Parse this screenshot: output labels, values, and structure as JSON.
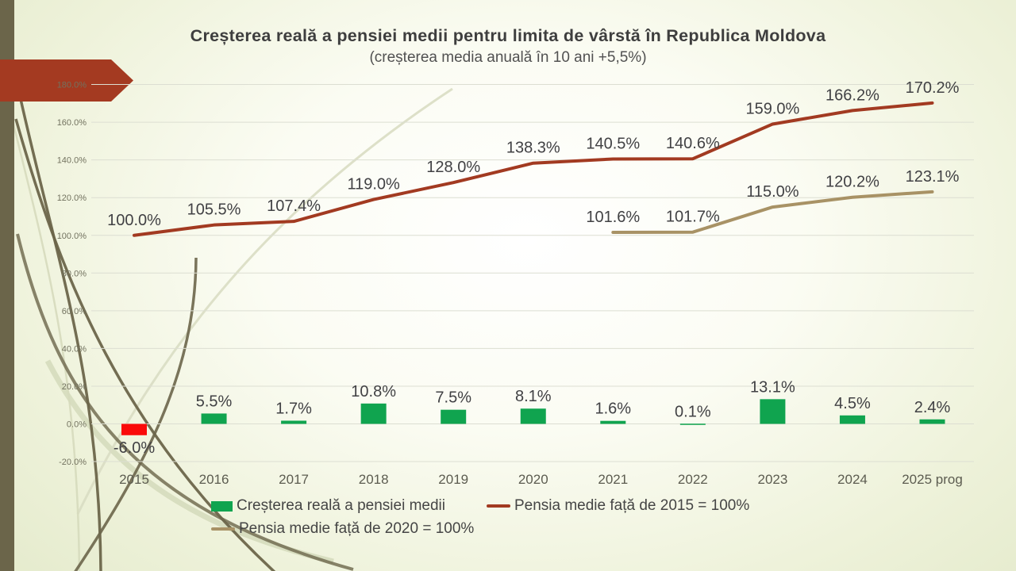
{
  "slide": {
    "title": "Creșterea reală a pensiei medii pentru limita de vârstă în Republica Moldova",
    "subtitle": "(creșterea media anuală în 10 ani +5,5%)"
  },
  "theme": {
    "arrow_color": "#A43A21",
    "edge_bar_color": "#6B654A",
    "bar_positive_color": "#10A44F",
    "bar_negative_color": "#FA0A0A",
    "line_2015_color": "#A23A21",
    "line_2020_color": "#A89265",
    "gridline_color": "#dcded2"
  },
  "chart_data": {
    "type": "combo-bar-line",
    "title": "Creșterea reală a pensiei medii pentru limita de vârstă în Republica Moldova",
    "subtitle": "(creșterea media anuală în 10 ani +5,5%)",
    "categories": [
      "2015",
      "2016",
      "2017",
      "2018",
      "2019",
      "2020",
      "2021",
      "2022",
      "2023",
      "2024",
      "2025 prog"
    ],
    "series": [
      {
        "name": "Creșterea reală a pensiei medii",
        "type": "bar",
        "values": [
          -6.0,
          5.5,
          1.7,
          10.8,
          7.5,
          8.1,
          1.6,
          0.1,
          13.1,
          4.5,
          2.4
        ],
        "labels": [
          "-6.0%",
          "5.5%",
          "1.7%",
          "10.8%",
          "7.5%",
          "8.1%",
          "1.6%",
          "0.1%",
          "13.1%",
          "4.5%",
          "2.4%"
        ],
        "color_positive": "#10A44F",
        "color_negative": "#FA0A0A"
      },
      {
        "name": "Pensia medie față de 2015 = 100%",
        "type": "line",
        "values": [
          100.0,
          105.5,
          107.4,
          119.0,
          128.0,
          138.3,
          140.5,
          140.6,
          159.0,
          166.2,
          170.2
        ],
        "labels": [
          "100.0%",
          "105.5%",
          "107.4%",
          "119.0%",
          "128.0%",
          "138.3%",
          "140.5%",
          "140.6%",
          "159.0%",
          "166.2%",
          "170.2%"
        ],
        "color": "#A23A21"
      },
      {
        "name": "Pensia medie față de 2020 = 100%",
        "type": "line",
        "values": [
          null,
          null,
          null,
          null,
          null,
          null,
          101.6,
          101.7,
          115.0,
          120.2,
          123.1
        ],
        "labels": [
          null,
          null,
          null,
          null,
          null,
          null,
          "101.6%",
          "101.7%",
          "115.0%",
          "120.2%",
          "123.1%"
        ],
        "color": "#A89265"
      }
    ],
    "y_axis": {
      "min": -20,
      "max": 180,
      "step": 20,
      "tick_values": [
        -20,
        0,
        20,
        40,
        60,
        80,
        100,
        120,
        140,
        160,
        180
      ],
      "tick_labels": [
        "-20.0%",
        "0.0%",
        "20.0%",
        "40.0%",
        "60.0%",
        "80.0%",
        "100.0%",
        "120.0%",
        "140.0%",
        "160.0%",
        "180.0%"
      ]
    },
    "grid": true,
    "legend_position": "bottom"
  },
  "legend": {
    "items": [
      {
        "label": "Creșterea reală a pensiei medii",
        "swatch": "bar",
        "color": "#10A44F"
      },
      {
        "label": "Pensia medie față de 2015 = 100%",
        "swatch": "line",
        "color": "#A23A21"
      },
      {
        "label": "Pensia medie față de 2020 = 100%",
        "swatch": "line",
        "color": "#A89265"
      }
    ]
  }
}
